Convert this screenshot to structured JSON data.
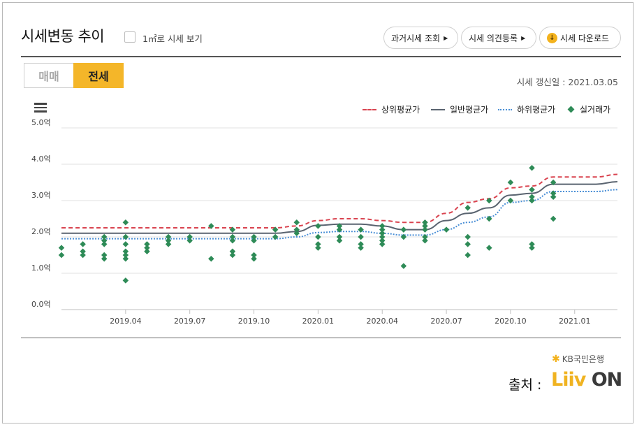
{
  "header": {
    "title": "시세변동 추이",
    "per_m2_label": "1㎡로 시세 보기",
    "buttons": {
      "past": "과거시세 조회",
      "opinion": "시세 의견등록",
      "download": "시세 다운로드"
    }
  },
  "tabs": {
    "sale": "매매",
    "lease": "전세",
    "active": "전세"
  },
  "update_date": "시세 갱신일 : 2021.03.05",
  "legend": {
    "upper": "상위평균가",
    "general": "일반평균가",
    "lower": "하위평균가",
    "actual": "실거래가"
  },
  "colors": {
    "upper": "#d9434f",
    "general": "#5a6470",
    "lower": "#4a8fd6",
    "actual": "#2e8b57",
    "accent": "#f4b629"
  },
  "source": {
    "bank": "KB국민은행",
    "label": "출처 :",
    "logo_liiv": "Liiv",
    "logo_on": "ON"
  },
  "chart_data": {
    "type": "line",
    "y_unit": "억",
    "ylim": [
      0,
      5
    ],
    "y_ticks": [
      "0.0억",
      "1.0억",
      "2.0억",
      "3.0억",
      "4.0억",
      "5.0억"
    ],
    "x_ticks": [
      "2019.04",
      "2019.07",
      "2019.10",
      "2020.01",
      "2020.04",
      "2020.07",
      "2020.10",
      "2021.01"
    ],
    "x_range": [
      "2019.01",
      "2021.03"
    ],
    "grid": true,
    "legend_position": "top-right",
    "series": [
      {
        "name": "상위평균가",
        "style": "dashed",
        "points": [
          [
            "2019.01",
            2.25
          ],
          [
            "2019.11",
            2.25
          ],
          [
            "2019.12",
            2.3
          ],
          [
            "2020.01",
            2.45
          ],
          [
            "2020.02",
            2.5
          ],
          [
            "2020.03",
            2.5
          ],
          [
            "2020.04",
            2.45
          ],
          [
            "2020.05",
            2.4
          ],
          [
            "2020.06",
            2.4
          ],
          [
            "2020.07",
            2.65
          ],
          [
            "2020.08",
            2.95
          ],
          [
            "2020.09",
            3.05
          ],
          [
            "2020.10",
            3.35
          ],
          [
            "2020.11",
            3.4
          ],
          [
            "2020.12",
            3.65
          ],
          [
            "2021.01",
            3.65
          ],
          [
            "2021.02",
            3.65
          ],
          [
            "2021.03",
            3.72
          ]
        ]
      },
      {
        "name": "일반평균가",
        "style": "solid",
        "points": [
          [
            "2019.01",
            2.1
          ],
          [
            "2019.11",
            2.1
          ],
          [
            "2019.12",
            2.15
          ],
          [
            "2020.01",
            2.32
          ],
          [
            "2020.02",
            2.35
          ],
          [
            "2020.03",
            2.35
          ],
          [
            "2020.04",
            2.3
          ],
          [
            "2020.05",
            2.2
          ],
          [
            "2020.06",
            2.2
          ],
          [
            "2020.07",
            2.45
          ],
          [
            "2020.08",
            2.65
          ],
          [
            "2020.09",
            2.8
          ],
          [
            "2020.10",
            3.15
          ],
          [
            "2020.11",
            3.2
          ],
          [
            "2020.12",
            3.45
          ],
          [
            "2021.01",
            3.45
          ],
          [
            "2021.02",
            3.45
          ],
          [
            "2021.03",
            3.52
          ]
        ]
      },
      {
        "name": "하위평균가",
        "style": "dotted",
        "points": [
          [
            "2019.01",
            1.95
          ],
          [
            "2019.11",
            1.95
          ],
          [
            "2019.12",
            2.0
          ],
          [
            "2020.01",
            2.12
          ],
          [
            "2020.02",
            2.15
          ],
          [
            "2020.03",
            2.15
          ],
          [
            "2020.04",
            2.1
          ],
          [
            "2020.05",
            2.05
          ],
          [
            "2020.06",
            2.05
          ],
          [
            "2020.07",
            2.2
          ],
          [
            "2020.08",
            2.4
          ],
          [
            "2020.09",
            2.55
          ],
          [
            "2020.10",
            2.95
          ],
          [
            "2020.11",
            3.0
          ],
          [
            "2020.12",
            3.25
          ],
          [
            "2021.01",
            3.25
          ],
          [
            "2021.02",
            3.25
          ],
          [
            "2021.03",
            3.3
          ]
        ]
      }
    ],
    "scatter": {
      "name": "실거래가",
      "points": [
        [
          "2019.01",
          1.7
        ],
        [
          "2019.01",
          1.5
        ],
        [
          "2019.02",
          1.8
        ],
        [
          "2019.02",
          1.6
        ],
        [
          "2019.02",
          1.5
        ],
        [
          "2019.03",
          2.0
        ],
        [
          "2019.03",
          1.9
        ],
        [
          "2019.03",
          1.8
        ],
        [
          "2019.03",
          1.5
        ],
        [
          "2019.03",
          1.4
        ],
        [
          "2019.04",
          2.4
        ],
        [
          "2019.04",
          2.0
        ],
        [
          "2019.04",
          1.8
        ],
        [
          "2019.04",
          1.6
        ],
        [
          "2019.04",
          1.5
        ],
        [
          "2019.04",
          1.4
        ],
        [
          "2019.04",
          0.8
        ],
        [
          "2019.05",
          1.8
        ],
        [
          "2019.05",
          1.7
        ],
        [
          "2019.05",
          1.6
        ],
        [
          "2019.06",
          2.0
        ],
        [
          "2019.06",
          1.9
        ],
        [
          "2019.06",
          1.8
        ],
        [
          "2019.07",
          2.0
        ],
        [
          "2019.07",
          1.9
        ],
        [
          "2019.08",
          2.3
        ],
        [
          "2019.08",
          1.4
        ],
        [
          "2019.09",
          2.2
        ],
        [
          "2019.09",
          2.0
        ],
        [
          "2019.09",
          1.9
        ],
        [
          "2019.09",
          1.6
        ],
        [
          "2019.09",
          1.5
        ],
        [
          "2019.10",
          2.0
        ],
        [
          "2019.10",
          1.9
        ],
        [
          "2019.10",
          1.5
        ],
        [
          "2019.10",
          1.4
        ],
        [
          "2019.11",
          2.2
        ],
        [
          "2019.11",
          2.0
        ],
        [
          "2019.12",
          2.4
        ],
        [
          "2019.12",
          2.2
        ],
        [
          "2019.12",
          2.1
        ],
        [
          "2020.01",
          2.3
        ],
        [
          "2020.01",
          2.0
        ],
        [
          "2020.01",
          1.8
        ],
        [
          "2020.01",
          1.7
        ],
        [
          "2020.02",
          2.3
        ],
        [
          "2020.02",
          2.2
        ],
        [
          "2020.02",
          2.0
        ],
        [
          "2020.02",
          1.9
        ],
        [
          "2020.03",
          2.2
        ],
        [
          "2020.03",
          2.0
        ],
        [
          "2020.03",
          1.8
        ],
        [
          "2020.03",
          1.7
        ],
        [
          "2020.04",
          2.3
        ],
        [
          "2020.04",
          2.2
        ],
        [
          "2020.04",
          2.1
        ],
        [
          "2020.04",
          2.0
        ],
        [
          "2020.04",
          1.9
        ],
        [
          "2020.04",
          1.8
        ],
        [
          "2020.05",
          2.2
        ],
        [
          "2020.05",
          2.0
        ],
        [
          "2020.05",
          1.2
        ],
        [
          "2020.06",
          2.4
        ],
        [
          "2020.06",
          2.3
        ],
        [
          "2020.06",
          2.2
        ],
        [
          "2020.06",
          2.0
        ],
        [
          "2020.06",
          1.9
        ],
        [
          "2020.07",
          2.2
        ],
        [
          "2020.08",
          2.8
        ],
        [
          "2020.08",
          2.0
        ],
        [
          "2020.08",
          1.8
        ],
        [
          "2020.08",
          1.5
        ],
        [
          "2020.09",
          3.0
        ],
        [
          "2020.09",
          2.5
        ],
        [
          "2020.09",
          1.7
        ],
        [
          "2020.10",
          3.5
        ],
        [
          "2020.10",
          3.0
        ],
        [
          "2020.11",
          3.9
        ],
        [
          "2020.11",
          3.3
        ],
        [
          "2020.11",
          3.1
        ],
        [
          "2020.11",
          3.0
        ],
        [
          "2020.11",
          1.8
        ],
        [
          "2020.11",
          1.7
        ],
        [
          "2020.12",
          3.5
        ],
        [
          "2020.12",
          3.2
        ],
        [
          "2020.12",
          3.1
        ],
        [
          "2020.12",
          2.5
        ]
      ]
    }
  }
}
